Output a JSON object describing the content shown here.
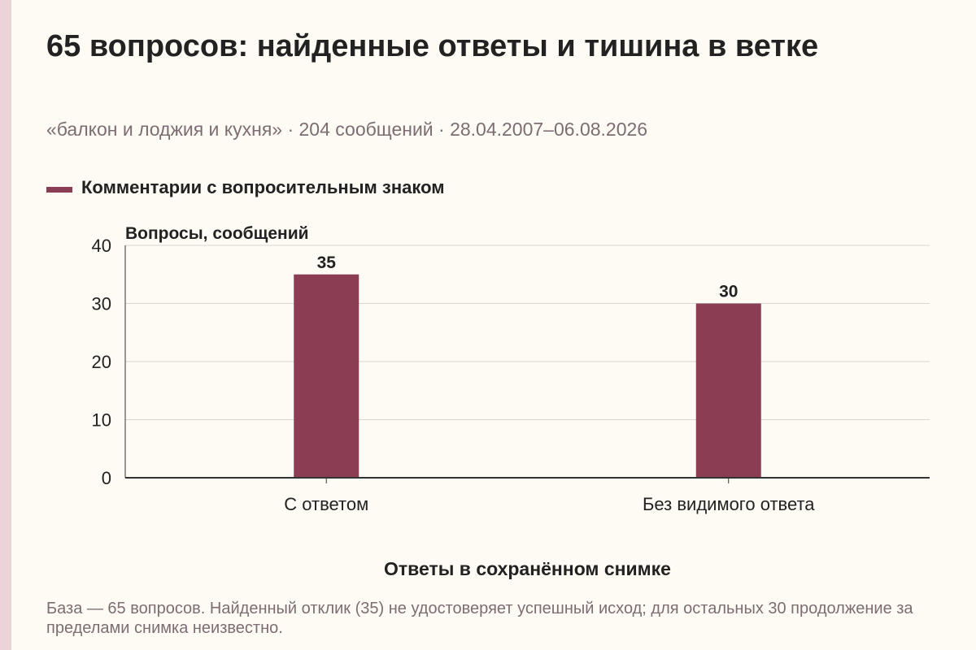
{
  "title": "65 вопросов: найденные ответы и тишина в ветке",
  "subtitle": "«балкон и лоджия и кухня» · 204 сообщений · 28.04.2007–06.08.2026",
  "footnote": "База — 65 вопросов. Найденный отклик (35) не удостоверяет успешный исход; для остальных 30 продолжение за пределами снимка неизвестно.",
  "colors": {
    "bar": "#8b3e53",
    "background": "#fdfbf4",
    "muted_text": "#7d6d72",
    "grid": "#d9d6cf",
    "axis": "#333333",
    "accent_strip": "#ecd3da"
  },
  "chart_data": {
    "type": "bar",
    "categories": [
      "С ответом",
      "Без видимого ответа"
    ],
    "series": [
      {
        "name": "Комментарии с вопросительным знаком",
        "values": [
          35,
          30
        ]
      }
    ],
    "ylabel": "Вопросы, сообщений",
    "xlabel": "Ответы в сохранённом снимке",
    "ylim": [
      0,
      40
    ],
    "yticks": [
      0,
      10,
      20,
      30,
      40
    ],
    "data_labels": true,
    "grid": true,
    "legend_position": "top-left"
  }
}
